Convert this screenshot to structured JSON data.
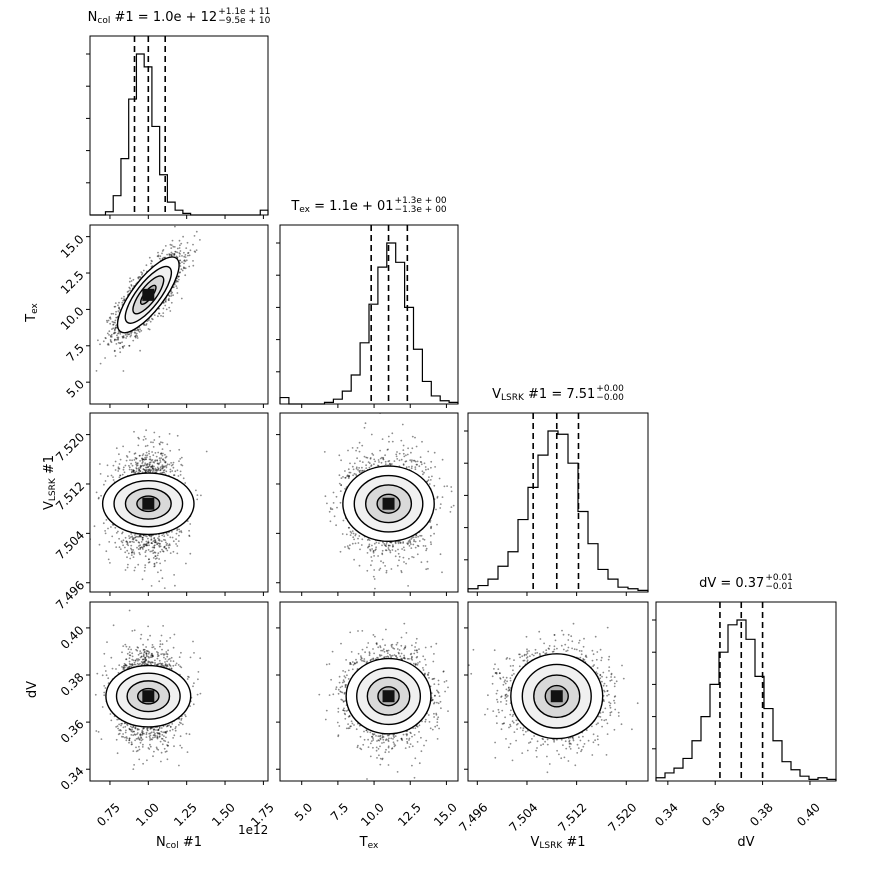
{
  "chart_data": {
    "type": "corner",
    "parameters": [
      {
        "key": "ncol",
        "label_main": "N",
        "label_sub": "col",
        "label_suffix": " #1",
        "title_value": "1.0e + 12",
        "title_plus": "+1.1e + 11",
        "title_minus": "−9.5e + 10",
        "range": [
          0.62,
          1.78
        ],
        "ticks": [
          0.75,
          1.0,
          1.25,
          1.5,
          1.75
        ],
        "tick_labels": [
          "0.75",
          "1.00",
          "1.25",
          "1.50",
          "1.75"
        ],
        "offset_text": "1e12",
        "median": 1.0,
        "q16": 0.91,
        "q84": 1.11,
        "sigma": 0.1,
        "hist": [
          0,
          0,
          2,
          12,
          35,
          72,
          100,
          92,
          55,
          25,
          8,
          3,
          1,
          0,
          0,
          0,
          0,
          0,
          0,
          0,
          0,
          0,
          3
        ]
      },
      {
        "key": "tex",
        "label_main": "T",
        "label_sub": "ex",
        "label_suffix": "",
        "title_value": "1.1e + 01",
        "title_plus": "+1.3e + 00",
        "title_minus": "−1.3e + 00",
        "range": [
          3.5,
          15.8
        ],
        "ticks": [
          5.0,
          7.5,
          10.0,
          12.5,
          15.0
        ],
        "tick_labels": [
          "5.0",
          "7.5",
          "10.0",
          "12.5",
          "15.0"
        ],
        "median": 11.0,
        "q16": 9.8,
        "q84": 12.3,
        "sigma": 1.3,
        "hist": [
          4,
          0,
          0,
          0,
          0,
          1,
          3,
          8,
          18,
          38,
          62,
          85,
          100,
          88,
          60,
          34,
          14,
          5,
          2,
          1
        ]
      },
      {
        "key": "vlsrk",
        "label_main": "V",
        "label_sub": "LSRK",
        "label_suffix": " #1",
        "title_value": "7.51",
        "title_plus": "+0.00",
        "title_minus": "−0.00",
        "range": [
          7.4945,
          7.5235
        ],
        "ticks": [
          7.496,
          7.504,
          7.512,
          7.52
        ],
        "tick_labels": [
          "7.496",
          "7.504",
          "7.512",
          "7.520"
        ],
        "median": 7.5088,
        "q16": 7.505,
        "q84": 7.5123,
        "sigma": 0.0037,
        "hist": [
          2,
          4,
          8,
          16,
          25,
          45,
          65,
          85,
          100,
          98,
          80,
          50,
          30,
          14,
          8,
          3,
          2,
          1
        ]
      },
      {
        "key": "dv",
        "label_main": "dV",
        "label_sub": "",
        "label_suffix": "",
        "title_value": "0.37",
        "title_plus": "+0.01",
        "title_minus": "−0.01",
        "range": [
          0.335,
          0.411
        ],
        "ticks": [
          0.34,
          0.36,
          0.38,
          0.4
        ],
        "tick_labels": [
          "0.34",
          "0.36",
          "0.38",
          "0.40"
        ],
        "median": 0.371,
        "q16": 0.362,
        "q84": 0.38,
        "sigma": 0.009,
        "hist": [
          2,
          5,
          8,
          14,
          25,
          40,
          60,
          80,
          97,
          100,
          88,
          65,
          45,
          25,
          12,
          7,
          3,
          1,
          2,
          1
        ]
      }
    ],
    "correlation": {
      "ncol_tex": 0.78
    },
    "quantiles": [
      0.16,
      0.5,
      0.84
    ],
    "contour_levels_sigma": [
      0.5,
      1.0,
      1.5,
      2.0
    ]
  }
}
